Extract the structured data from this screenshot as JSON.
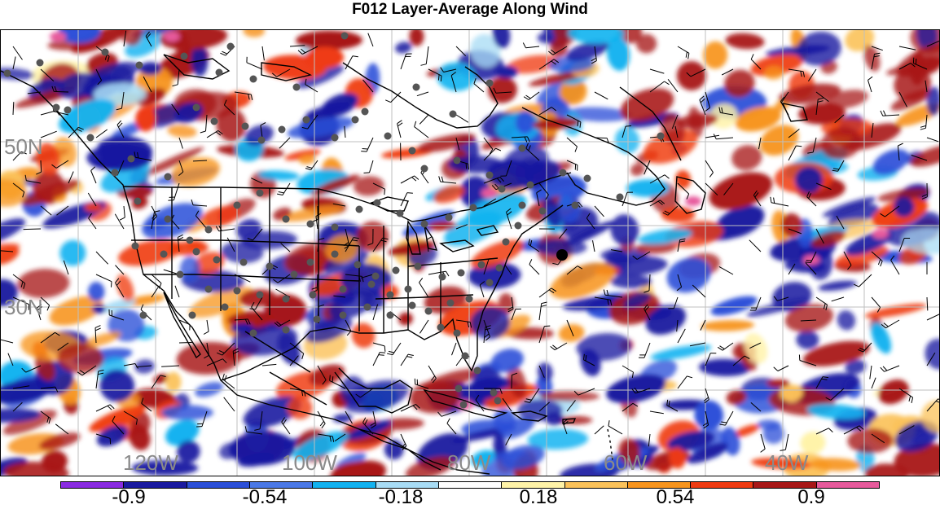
{
  "title": "F012 Layer-Average Along Wind",
  "longitude_labels": [
    "120W",
    "100W",
    "80W",
    "60W",
    "40W"
  ],
  "latitude_labels": [
    "50N",
    "30N"
  ],
  "colorbar": {
    "colors": [
      "#8a2be2",
      "#1a1aa0",
      "#2b4fd8",
      "#4a78e6",
      "#12b2f0",
      "#a8dcf5",
      "#ffffff",
      "#fff3a8",
      "#fbc25a",
      "#f7941d",
      "#ef3b12",
      "#a81818",
      "#e75a9c"
    ],
    "labels": [
      "-0.9",
      "-0.54",
      "-0.18",
      "0.18",
      "0.54",
      "0.9"
    ]
  },
  "map": {
    "palette_negative": [
      "#1a1aa0",
      "#2b4fd8",
      "#12b2f0",
      "#a8dcf5"
    ],
    "palette_positive": [
      "#fff3a8",
      "#fbc25a",
      "#f7941d",
      "#ef3b12",
      "#a81818"
    ],
    "highlight_magenta": "#e75a9c"
  }
}
